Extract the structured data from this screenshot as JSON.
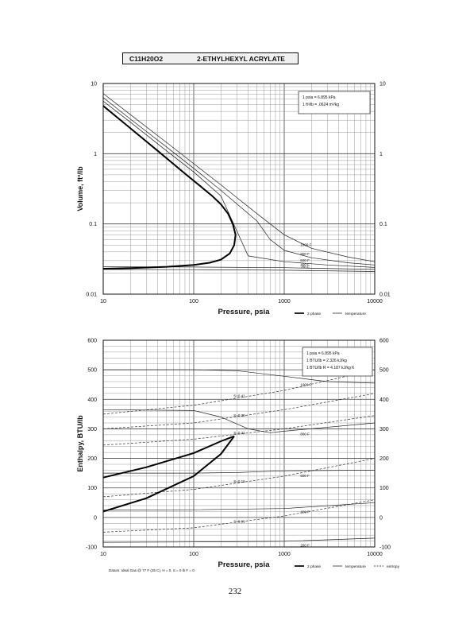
{
  "header": {
    "formula": "C11H20O2",
    "name": "2-ETHYLHEXYL ACRYLATE"
  },
  "page_number": "232",
  "chart_data": [
    {
      "type": "line",
      "xlabel": "Pressure,  psia",
      "ylabel": "Volume, ft^3/lb",
      "xscale": "log",
      "yscale": "log",
      "xlim": [
        10,
        10000
      ],
      "ylim": [
        0.01,
        10
      ],
      "x_ticks": [
        "10",
        "100",
        "1000",
        "10000"
      ],
      "y_ticks_left": [
        "0.01",
        "0.1",
        "1",
        "10"
      ],
      "y_ticks_right": [
        "0.01",
        "0.1",
        "1",
        "10"
      ],
      "grid": true,
      "notes": [
        "1 psia  =  6.895 kPa",
        "1 ft^3/lb  =  .0624 m^3/kg"
      ],
      "legend": [
        {
          "label": "2 phase",
          "style": "thick"
        },
        {
          "label": "temperature",
          "style": "thin"
        }
      ],
      "two_phase_dome": {
        "vapor": {
          "x": [
            10,
            20,
            40,
            80,
            120,
            160,
            200,
            240,
            270,
            290
          ],
          "y": [
            4.8,
            2.3,
            1.1,
            0.52,
            0.34,
            0.25,
            0.19,
            0.14,
            0.1,
            0.07
          ]
        },
        "liquid": {
          "x": [
            10,
            20,
            50,
            100,
            150,
            200,
            250,
            280,
            290
          ],
          "y": [
            0.023,
            0.0235,
            0.0245,
            0.026,
            0.028,
            0.031,
            0.038,
            0.05,
            0.07
          ]
        }
      },
      "isotherms": [
        {
          "label": "200 F",
          "x": [
            10,
            100,
            1000,
            10000
          ],
          "y": [
            0.0225,
            0.0223,
            0.0219,
            0.021
          ]
        },
        {
          "label": "400 F",
          "x": [
            10,
            100,
            1000,
            10000
          ],
          "y": [
            0.0245,
            0.0243,
            0.0238,
            0.0225
          ]
        },
        {
          "label": "600 F",
          "x": [
            10,
            20,
            50,
            100,
            200,
            400,
            1000,
            3000,
            10000
          ],
          "y": [
            5.6,
            2.8,
            1.1,
            0.55,
            0.25,
            0.035,
            0.029,
            0.026,
            0.024
          ]
        },
        {
          "label": "800 F",
          "x": [
            10,
            20,
            50,
            100,
            200,
            500,
            700,
            1000,
            2000,
            5000,
            10000
          ],
          "y": [
            6.3,
            3.1,
            1.25,
            0.62,
            0.3,
            0.11,
            0.06,
            0.042,
            0.033,
            0.028,
            0.026
          ]
        },
        {
          "label": "1000 F",
          "x": [
            10,
            20,
            50,
            100,
            200,
            500,
            1000,
            2000,
            5000,
            10000
          ],
          "y": [
            7.2,
            3.6,
            1.45,
            0.72,
            0.36,
            0.14,
            0.07,
            0.045,
            0.034,
            0.029
          ]
        }
      ]
    },
    {
      "type": "line",
      "xlabel": "Pressure,  psia",
      "ylabel": "Enthalpy, BTU/lb",
      "xscale": "log",
      "xlim": [
        10,
        10000
      ],
      "ylim": [
        -100,
        600
      ],
      "x_ticks": [
        "10",
        "100",
        "1000",
        "10000"
      ],
      "y_ticks_left": [
        "-100",
        "0",
        "100",
        "200",
        "300",
        "400",
        "500",
        "600"
      ],
      "y_ticks_right": [
        "-100",
        "0",
        "100",
        "200",
        "300",
        "400",
        "500",
        "600"
      ],
      "grid": true,
      "notes": [
        "1 psia  =  6.895 kPa",
        "1 BTU/lb  =  2.326 kJ/kg",
        "1 BTU/lb R  =  4.187 kJ/kg K"
      ],
      "legend": [
        {
          "label": "2 phase",
          "style": "thick"
        },
        {
          "label": "temperature",
          "style": "thin"
        },
        {
          "label": "entropy",
          "style": "dashed"
        }
      ],
      "datum_note": "Datum: Ideal Gas @ 77 F (25 C),  H = 0,  S = 0 lb F = 0",
      "two_phase_dome": {
        "vapor": {
          "x": [
            10,
            30,
            100,
            200,
            280
          ],
          "y": [
            135,
            170,
            218,
            258,
            275
          ]
        },
        "liquid": {
          "x": [
            10,
            30,
            100,
            200,
            280
          ],
          "y": [
            20,
            65,
            140,
            215,
            275
          ]
        }
      },
      "isotherms": [
        {
          "label": "200 F",
          "x": [
            10,
            100,
            1000,
            10000
          ],
          "y": [
            -84,
            -83,
            -81,
            -70
          ]
        },
        {
          "label": "400 F",
          "x": [
            10,
            100,
            1000,
            10000
          ],
          "y": [
            25,
            26,
            30,
            50
          ]
        },
        {
          "label": "600 F",
          "x": [
            10,
            100,
            300,
            1000,
            10000
          ],
          "y": [
            150,
            150,
            152,
            158,
            160
          ]
        },
        {
          "label": "800 F",
          "x": [
            10,
            100,
            200,
            400,
            700,
            1000,
            10000
          ],
          "y": [
            365,
            362,
            340,
            300,
            287,
            292,
            320
          ]
        },
        {
          "label": "1000 F",
          "x": [
            10,
            100,
            300,
            1000,
            3000,
            10000
          ],
          "y": [
            500,
            500,
            497,
            478,
            460,
            455
          ]
        }
      ],
      "entropy_lines": [
        {
          "label": "S=0.01",
          "x": [
            10,
            100,
            1000,
            10000
          ],
          "y": [
            -50,
            -35,
            5,
            60
          ]
        },
        {
          "label": "S=0.16",
          "x": [
            10,
            100,
            1000,
            10000
          ],
          "y": [
            70,
            95,
            140,
            200
          ]
        },
        {
          "label": "S=0.31",
          "x": [
            10,
            100,
            1000,
            10000
          ],
          "y": [
            245,
            265,
            300,
            345
          ]
        },
        {
          "label": "S=0.36",
          "x": [
            10,
            100,
            1000,
            10000
          ],
          "y": [
            300,
            320,
            365,
            420
          ]
        },
        {
          "label": "S=0.41",
          "x": [
            10,
            100,
            1000,
            10000
          ],
          "y": [
            350,
            380,
            430,
            500
          ]
        }
      ]
    }
  ]
}
